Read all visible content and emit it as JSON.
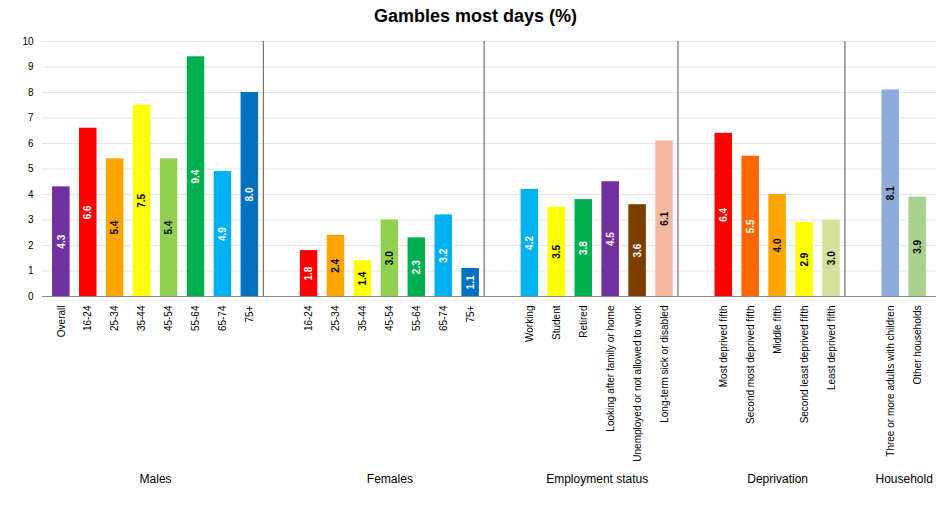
{
  "chart_data": {
    "type": "bar",
    "title": "Gambles most days (%)",
    "ylim": [
      0,
      10
    ],
    "yticks": [
      0,
      1,
      2,
      3,
      4,
      5,
      6,
      7,
      8,
      9,
      10
    ],
    "grid": true,
    "data_labels": true,
    "groups": [
      {
        "label": "Males",
        "categories": [
          "Overall",
          "16-24",
          "25-34",
          "35-44",
          "45-54",
          "55-64",
          "65-74",
          "75+"
        ],
        "values": [
          4.3,
          6.6,
          5.4,
          7.5,
          5.4,
          9.4,
          4.9,
          8.0
        ],
        "value_labels": [
          "4.3",
          "6.6",
          "5.4",
          "7.5",
          "5.4",
          "9.4",
          "4.9",
          "8.0"
        ],
        "colors": [
          "#7030A0",
          "#FF0000",
          "#FFA500",
          "#FFFF00",
          "#92D050",
          "#00B050",
          "#00B0F0",
          "#0070C0"
        ]
      },
      {
        "label": "Females",
        "categories": [
          "16-24",
          "25-34",
          "35-44",
          "45-54",
          "55-64",
          "65-74",
          "75+"
        ],
        "values": [
          1.8,
          2.4,
          1.4,
          3.0,
          2.3,
          3.2,
          1.1
        ],
        "value_labels": [
          "1.8",
          "2.4",
          "1.4",
          "3.0",
          "2.3",
          "3.2",
          "1.1"
        ],
        "colors": [
          "#FF0000",
          "#FFA500",
          "#FFFF00",
          "#92D050",
          "#00B050",
          "#00B0F0",
          "#0070C0"
        ]
      },
      {
        "label": "Employment status",
        "categories": [
          "Working",
          "Student",
          "Retired",
          "Looking after family or home",
          "Unemployed or not allowed to work",
          "Long-term sick or disabled"
        ],
        "values": [
          4.2,
          3.5,
          3.8,
          4.5,
          3.6,
          6.1
        ],
        "value_labels": [
          "4.2",
          "3.5",
          "3.8",
          "4.5",
          "3.6",
          "6.1"
        ],
        "colors": [
          "#00B0F0",
          "#FFFF00",
          "#00B050",
          "#7030A0",
          "#7B3F00",
          "#F4B8A0"
        ]
      },
      {
        "label": "Deprivation",
        "categories": [
          "Most deprived fifth",
          "Second most deprived fifth",
          "Middle fifth",
          "Second least deprived fifth",
          "Least deprived fifth"
        ],
        "values": [
          6.4,
          5.5,
          4.0,
          2.9,
          3.0
        ],
        "value_labels": [
          "6.4",
          "5.5",
          "4.0",
          "2.9",
          "3.0"
        ],
        "colors": [
          "#FF0000",
          "#FF6600",
          "#FFA500",
          "#FFFF00",
          "#D4E09B"
        ]
      },
      {
        "label": "Household",
        "categories": [
          "Three or more adults with children",
          "Other households"
        ],
        "values": [
          8.1,
          3.9
        ],
        "value_labels": [
          "8.1",
          "3.9"
        ],
        "colors": [
          "#8EA9DB",
          "#A9D18E"
        ]
      }
    ]
  }
}
